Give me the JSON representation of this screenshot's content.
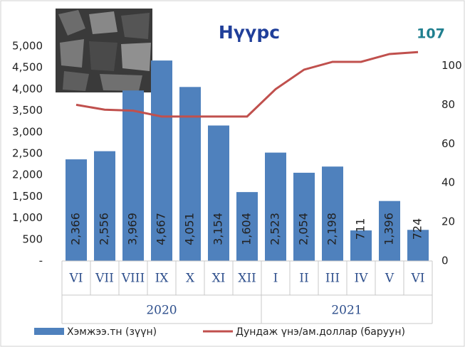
{
  "chart_data": {
    "type": "bar_line",
    "title": "Нүүрс",
    "annotation": "107",
    "groups": [
      {
        "name": "2020",
        "categories": [
          "VI",
          "VII",
          "VIII",
          "IX",
          "X",
          "XI",
          "XII"
        ]
      },
      {
        "name": "2021",
        "categories": [
          "I",
          "II",
          "III",
          "IV",
          "V",
          "VI"
        ]
      }
    ],
    "series": [
      {
        "name": "Хэмжээ.тн (зүүн)",
        "type": "bar",
        "color": "#4f81bd",
        "values": [
          2366,
          2556,
          3969,
          4667,
          4051,
          3154,
          1604,
          2523,
          2054,
          2198,
          711,
          1396,
          724
        ],
        "value_labels": [
          "2,366",
          "2,556",
          "3,969",
          "4,667",
          "4,051",
          "3,154",
          "1,604",
          "2,523",
          "2,054",
          "2,198",
          "711",
          "1,396",
          "724"
        ]
      },
      {
        "name": "Дундаж үнэ/ам.доллар (баруун)",
        "type": "line",
        "axis": "y2",
        "color": "#c0504d",
        "values": [
          80,
          77.5,
          77,
          74,
          74,
          74,
          74,
          88,
          98,
          102,
          102,
          106,
          107
        ]
      }
    ],
    "ylim": [
      0,
      5000
    ],
    "yticks": [
      {
        "value": 0,
        "label": "-"
      },
      500,
      {
        "value": 1000,
        "label": "1,000"
      },
      {
        "value": 1500,
        "label": "1,500"
      },
      {
        "value": 2000,
        "label": "2,000"
      },
      {
        "value": 2500,
        "label": "2,500"
      },
      {
        "value": 3000,
        "label": "3,000"
      },
      {
        "value": 3500,
        "label": "3,500"
      },
      {
        "value": 4000,
        "label": "4,000"
      },
      {
        "value": 4500,
        "label": "4,500"
      },
      {
        "value": 5000,
        "label": "5,000"
      }
    ],
    "y2lim": [
      0,
      110
    ],
    "y2ticks": [
      0,
      20,
      40,
      60,
      80,
      100
    ],
    "legend": "bottom"
  }
}
